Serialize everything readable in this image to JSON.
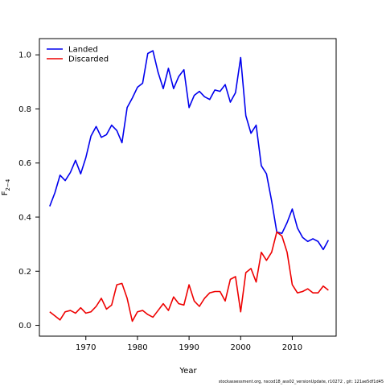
{
  "chart_data": {
    "type": "line",
    "xlabel": "Year",
    "ylabel": "F",
    "ylabel_sub": "2−4",
    "xlim": [
      1961,
      2018.5
    ],
    "ylim": [
      -0.04,
      1.06
    ],
    "xticks": [
      1970,
      1980,
      1990,
      2000,
      2010
    ],
    "yticks": [
      "0.0",
      "0.2",
      "0.4",
      "0.6",
      "0.8",
      "1.0"
    ],
    "grid": false,
    "legend": "top-left",
    "x": [
      1963,
      1964,
      1965,
      1966,
      1967,
      1968,
      1969,
      1970,
      1971,
      1972,
      1973,
      1974,
      1975,
      1976,
      1977,
      1978,
      1979,
      1980,
      1981,
      1982,
      1983,
      1984,
      1985,
      1986,
      1987,
      1988,
      1989,
      1990,
      1991,
      1992,
      1993,
      1994,
      1995,
      1996,
      1997,
      1998,
      1999,
      2000,
      2001,
      2002,
      2003,
      2004,
      2005,
      2006,
      2007,
      2008,
      2009,
      2010,
      2011,
      2012,
      2013,
      2014,
      2015,
      2016,
      2017
    ],
    "series": [
      {
        "name": "Landed",
        "color": "#0000ee",
        "values": [
          0.44,
          0.49,
          0.555,
          0.535,
          0.565,
          0.61,
          0.56,
          0.62,
          0.7,
          0.735,
          0.695,
          0.705,
          0.74,
          0.72,
          0.675,
          0.805,
          0.84,
          0.88,
          0.895,
          1.005,
          1.015,
          0.935,
          0.875,
          0.95,
          0.875,
          0.92,
          0.945,
          0.805,
          0.85,
          0.865,
          0.845,
          0.835,
          0.87,
          0.865,
          0.89,
          0.825,
          0.86,
          0.99,
          0.775,
          0.71,
          0.74,
          0.59,
          0.56,
          0.46,
          0.345,
          0.34,
          0.38,
          0.43,
          0.36,
          0.325,
          0.31,
          0.32,
          0.31,
          0.28,
          0.315
        ]
      },
      {
        "name": "Discarded",
        "color": "#ee0000",
        "values": [
          0.05,
          0.035,
          0.02,
          0.05,
          0.055,
          0.045,
          0.065,
          0.045,
          0.05,
          0.07,
          0.1,
          0.06,
          0.075,
          0.15,
          0.155,
          0.1,
          0.015,
          0.05,
          0.055,
          0.04,
          0.03,
          0.055,
          0.08,
          0.055,
          0.105,
          0.08,
          0.075,
          0.15,
          0.09,
          0.07,
          0.1,
          0.12,
          0.125,
          0.125,
          0.09,
          0.17,
          0.18,
          0.05,
          0.195,
          0.21,
          0.16,
          0.27,
          0.24,
          0.27,
          0.345,
          0.33,
          0.27,
          0.15,
          0.12,
          0.125,
          0.135,
          0.12,
          0.12,
          0.145,
          0.13
        ]
      }
    ]
  },
  "footer": "stockassessment.org, nscod18_ass02_versionUpdate, r10272 , git: 121ae5df1d45"
}
